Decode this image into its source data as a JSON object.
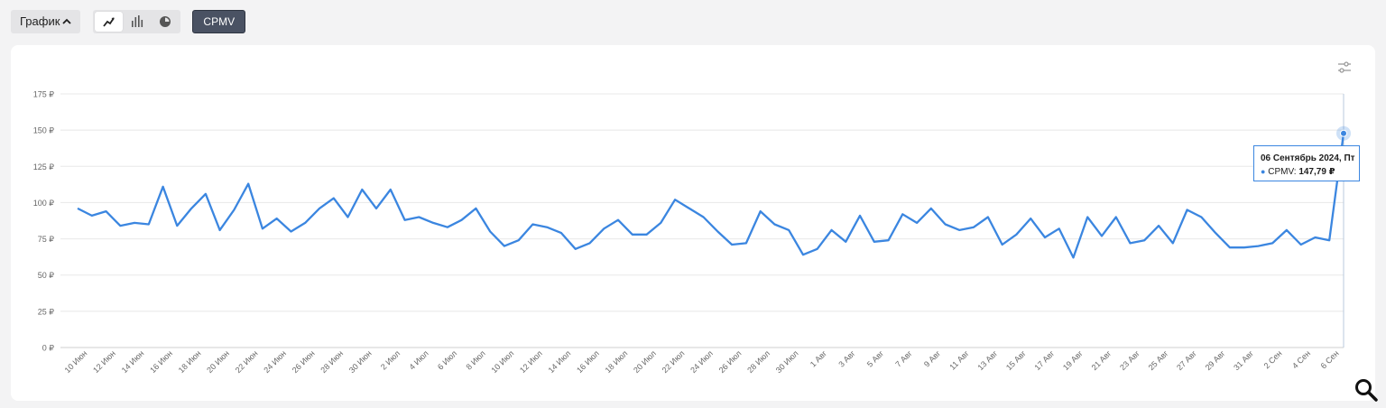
{
  "toolbar": {
    "graph_toggle_label": "График",
    "metric_label": "CPMV"
  },
  "tooltip": {
    "date": "06 Сентябрь 2024, Пт",
    "series": "CPMV",
    "value": "147,79 ₽"
  },
  "icons": {
    "line_chart": "line-chart-icon",
    "bar_chart": "bar-chart-icon",
    "pie_chart": "pie-chart-icon",
    "settings": "sliders-icon",
    "search": "magnifier-icon"
  },
  "colors": {
    "line": "#3b86e0",
    "grid": "#e8e8e8",
    "axis_text": "#666666",
    "metric_button": "#4a5263"
  },
  "chart_data": {
    "type": "line",
    "y_tick_labels": [
      "0 ₽",
      "25 ₽",
      "50 ₽",
      "75 ₽",
      "100 ₽",
      "125 ₽",
      "150 ₽",
      "175 ₽"
    ],
    "ylim": [
      0,
      175
    ],
    "grid": true,
    "x_tick_labels": [
      "10 Июн",
      "12 Июн",
      "14 Июн",
      "16 Июн",
      "18 Июн",
      "20 Июн",
      "22 Июн",
      "24 Июн",
      "26 Июн",
      "28 Июн",
      "30 Июн",
      "2 Июл",
      "4 Июл",
      "6 Июл",
      "8 Июл",
      "10 Июл",
      "12 Июл",
      "14 Июл",
      "16 Июл",
      "18 Июл",
      "20 Июл",
      "22 Июл",
      "24 Июл",
      "26 Июл",
      "28 Июл",
      "30 Июл",
      "1 Авг",
      "3 Авг",
      "5 Авг",
      "7 Авг",
      "9 Авг",
      "11 Авг",
      "13 Авг",
      "15 Авг",
      "17 Авг",
      "19 Авг",
      "21 Авг",
      "23 Авг",
      "25 Авг",
      "27 Авг",
      "29 Авг",
      "31 Авг",
      "2 Сен",
      "4 Сен",
      "6 Сен"
    ],
    "series": [
      {
        "name": "CPMV",
        "values": [
          96,
          91,
          94,
          84,
          86,
          85,
          111,
          84,
          96,
          106,
          81,
          95,
          113,
          82,
          89,
          80,
          86,
          96,
          103,
          90,
          109,
          96,
          109,
          88,
          90,
          86,
          83,
          88,
          96,
          80,
          70,
          74,
          85,
          83,
          79,
          68,
          72,
          82,
          88,
          78,
          78,
          86,
          102,
          96,
          90,
          80,
          71,
          72,
          94,
          85,
          81,
          64,
          68,
          81,
          73,
          91,
          73,
          74,
          92,
          86,
          96,
          85,
          81,
          83,
          90,
          71,
          78,
          89,
          76,
          82,
          62,
          90,
          77,
          90,
          72,
          74,
          84,
          72,
          95,
          90,
          79,
          69,
          69,
          70,
          72,
          81,
          71,
          76,
          74,
          147.79
        ]
      }
    ],
    "highlight": {
      "index": 89,
      "value": 147.79
    }
  }
}
